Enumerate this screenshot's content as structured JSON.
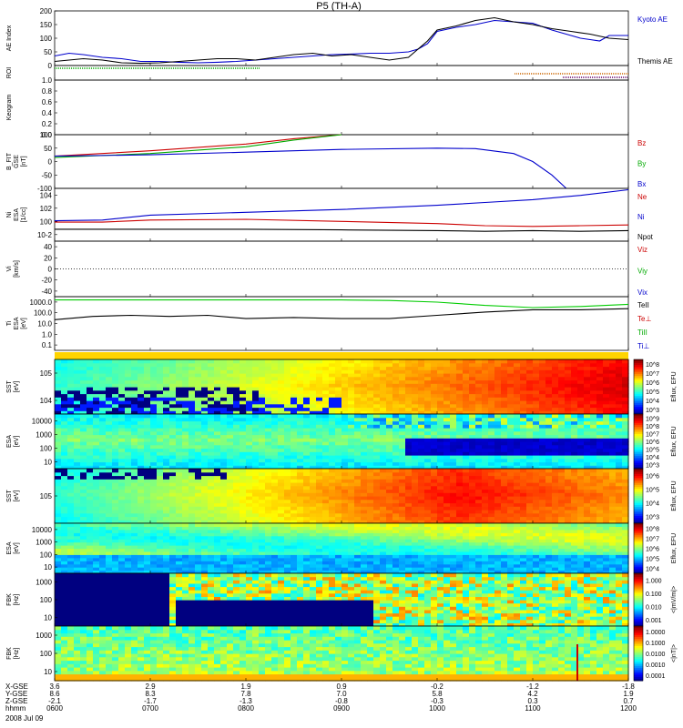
{
  "title": "P5 (TH-A)",
  "date_label": "2008 Jul 09",
  "chart_data": [
    {
      "type": "line",
      "panel": "ae",
      "ylabel": "AE Index",
      "yticks": [
        "0",
        "50",
        "100",
        "150",
        "200"
      ],
      "ylim": [
        0,
        200
      ],
      "series": [
        {
          "name": "Kyoto AE",
          "color": "#0000cc",
          "x": [
            6,
            6.15,
            6.3,
            6.5,
            6.7,
            6.9,
            7.1,
            7.3,
            7.5,
            7.7,
            7.9,
            8.1,
            8.3,
            8.5,
            8.7,
            8.9,
            9.1,
            9.3,
            9.5,
            9.7,
            9.8,
            9.9,
            10.0,
            10.2,
            10.4,
            10.6,
            10.8,
            11.0,
            11.2,
            11.4,
            11.5,
            11.6,
            11.7,
            11.8,
            11.9,
            12.0
          ],
          "y": [
            35,
            45,
            40,
            30,
            25,
            15,
            15,
            12,
            10,
            12,
            15,
            20,
            25,
            30,
            35,
            40,
            42,
            45,
            45,
            50,
            60,
            80,
            125,
            140,
            150,
            165,
            160,
            155,
            130,
            110,
            100,
            95,
            90,
            110,
            110,
            110
          ]
        },
        {
          "name": "Themis AE",
          "color": "#000000",
          "x": [
            6,
            6.15,
            6.3,
            6.5,
            6.7,
            6.9,
            7.1,
            7.3,
            7.5,
            7.7,
            7.9,
            8.1,
            8.3,
            8.5,
            8.7,
            8.9,
            9.1,
            9.3,
            9.5,
            9.7,
            9.8,
            9.9,
            10.0,
            10.2,
            10.4,
            10.6,
            10.8,
            11.0,
            11.2,
            11.4,
            11.6,
            11.8,
            12.0
          ],
          "y": [
            15,
            20,
            25,
            20,
            10,
            8,
            10,
            15,
            20,
            25,
            25,
            20,
            30,
            40,
            45,
            35,
            40,
            30,
            20,
            30,
            60,
            90,
            130,
            145,
            165,
            175,
            160,
            150,
            135,
            125,
            115,
            100,
            95
          ]
        }
      ],
      "legend": [
        "Kyoto AE",
        "Themis AE"
      ]
    },
    {
      "type": "line",
      "panel": "roi",
      "ylabel": "ROI"
    },
    {
      "type": "line",
      "panel": "keogram",
      "ylabel": "Keogram",
      "yticks": [
        "0.0",
        "0.2",
        "0.4",
        "0.6",
        "0.8",
        "1.0"
      ],
      "ylim": [
        0,
        1
      ]
    },
    {
      "type": "line",
      "panel": "bfit",
      "ylabel": "B_FIT",
      "unit_lines": [
        "GSE",
        "[nT]"
      ],
      "yticks": [
        "-100",
        "-50",
        "0",
        "50",
        "100"
      ],
      "ylim": [
        -100,
        100
      ],
      "series": [
        {
          "name": "Bz",
          "color": "#cc0000",
          "x": [
            6,
            7,
            8,
            8.5,
            9.0
          ],
          "y": [
            20,
            40,
            65,
            85,
            100
          ]
        },
        {
          "name": "By",
          "color": "#00aa00",
          "x": [
            6,
            7,
            8,
            8.5,
            9.0
          ],
          "y": [
            15,
            30,
            55,
            80,
            100
          ]
        },
        {
          "name": "Bx",
          "color": "#0000cc",
          "x": [
            6,
            7,
            8,
            9,
            10,
            10.4,
            10.8,
            11.0,
            11.2,
            11.35
          ],
          "y": [
            20,
            25,
            35,
            45,
            50,
            48,
            30,
            0,
            -50,
            -100
          ]
        }
      ],
      "legend": [
        "Bz",
        "By",
        "Bx"
      ]
    },
    {
      "type": "line",
      "panel": "ni",
      "ylabel": "Ni",
      "unit_lines": [
        "ESA",
        "[1/cc]"
      ],
      "yticks": [
        "10-2",
        "100",
        "102",
        "104"
      ],
      "ylim": [
        -2.5,
        5
      ],
      "log_scale": true,
      "series": [
        {
          "name": "Ne",
          "color": "#cc0000",
          "x": [
            6,
            6.5,
            7,
            8,
            9,
            10,
            10.5,
            11,
            11.5,
            12
          ],
          "y": [
            0.2,
            0.2,
            0.5,
            0.6,
            0.3,
            0.0,
            -0.3,
            -0.4,
            -0.3,
            -0.2
          ]
        },
        {
          "name": "Ni",
          "color": "#0000cc",
          "x": [
            6,
            6.5,
            7,
            8,
            9,
            10,
            10.5,
            11,
            11.5,
            12
          ],
          "y": [
            0.4,
            0.5,
            1.2,
            1.6,
            2.0,
            2.6,
            3.0,
            3.4,
            4.0,
            4.8
          ]
        },
        {
          "name": "Npot",
          "color": "#000000",
          "x": [
            6,
            7,
            8,
            9,
            10,
            10.5,
            11,
            11.5,
            12
          ],
          "y": [
            -0.8,
            -0.8,
            -0.8,
            -0.9,
            -1.0,
            -1.1,
            -1.0,
            -1.1,
            -1.0
          ]
        }
      ],
      "legend": [
        "Ne",
        "Ni",
        "Npot"
      ]
    },
    {
      "type": "line",
      "panel": "vi",
      "ylabel": "Vi",
      "unit_lines": [
        "[km/s]"
      ],
      "yticks": [
        "-40",
        "-20",
        "0",
        "20",
        "40"
      ],
      "ylim": [
        -50,
        50
      ],
      "legend": [
        "Viz",
        "Viy",
        "Vix"
      ]
    },
    {
      "type": "line",
      "panel": "ti",
      "ylabel": "Ti",
      "unit_lines": [
        "ESA",
        "[eV]"
      ],
      "yticks": [
        "0.1",
        "1.0",
        "10.0",
        "100.0",
        "1000.0"
      ],
      "ylim": [
        -1.3,
        3.6
      ],
      "log_scale": true,
      "series": [
        {
          "name": "TiII",
          "color": "#00cc00",
          "x": [
            6,
            7,
            8,
            9,
            9.5,
            10,
            10.5,
            11,
            11.5,
            12
          ],
          "y": [
            3.3,
            3.3,
            3.3,
            3.3,
            3.25,
            3.1,
            2.8,
            2.6,
            2.7,
            2.9
          ]
        },
        {
          "name": "TeII",
          "color": "#000000",
          "x": [
            6,
            6.4,
            6.8,
            7.2,
            7.6,
            8,
            8.5,
            9,
            9.5,
            10,
            10.5,
            11,
            11.5,
            12
          ],
          "y": [
            1.5,
            1.8,
            1.9,
            1.8,
            1.9,
            1.6,
            1.7,
            1.6,
            1.6,
            1.9,
            2.2,
            2.4,
            2.4,
            2.5
          ]
        }
      ],
      "legend": [
        "TeII",
        "Te⊥",
        "TiII",
        "Ti⊥"
      ]
    },
    {
      "type": "heatmap",
      "panel": "sst1",
      "ylabel": "SST",
      "unit_lines": [
        "[eV]"
      ],
      "yticks": [
        "104",
        "105"
      ],
      "colorbar": "Eflux, EFU",
      "cticks": [
        "10^3",
        "10^4",
        "10^5",
        "10^6",
        "10^7",
        "10^8"
      ]
    },
    {
      "type": "heatmap",
      "panel": "esa1",
      "ylabel": "ESA",
      "unit_lines": [
        "[eV]"
      ],
      "yticks": [
        "10",
        "100",
        "1000",
        "10000"
      ],
      "colorbar": "Eflux, EFU",
      "cticks": [
        "10^3",
        "10^4",
        "10^5",
        "10^6",
        "10^7",
        "10^8",
        "10^9"
      ]
    },
    {
      "type": "heatmap",
      "panel": "sst2",
      "ylabel": "SST",
      "unit_lines": [
        "[eV]"
      ],
      "yticks": [
        "105"
      ],
      "colorbar": "Eflux, EFU",
      "cticks": [
        "10^3",
        "10^4",
        "10^5",
        "10^6"
      ]
    },
    {
      "type": "heatmap",
      "panel": "esa2",
      "ylabel": "ESA",
      "unit_lines": [
        "[eV]"
      ],
      "yticks": [
        "10",
        "100",
        "1000",
        "10000"
      ],
      "colorbar": "Eflux, EFU",
      "cticks": [
        "10^4",
        "10^5",
        "10^6",
        "10^7",
        "10^8"
      ]
    },
    {
      "type": "heatmap",
      "panel": "fbk1",
      "ylabel": "FBK",
      "unit_lines": [
        "[Hz]"
      ],
      "yticks": [
        "10",
        "100",
        "1000"
      ],
      "colorbar": "<|mV/m|>",
      "cticks": [
        "0.001",
        "0.010",
        "0.100",
        "1.000"
      ]
    },
    {
      "type": "heatmap",
      "panel": "fbk2",
      "ylabel": "FBK",
      "unit_lines": [
        "[Hz]"
      ],
      "yticks": [
        "10",
        "100",
        "1000"
      ],
      "colorbar": "<|nT|>",
      "cticks": [
        "0.0001",
        "0.0010",
        "0.0100",
        "0.1000",
        "1.0000"
      ]
    }
  ],
  "time_axis": {
    "row_labels": [
      "X-GSE",
      "Y-GSE",
      "Z-GSE",
      "hhmm"
    ],
    "columns": [
      {
        "x": "3.6",
        "y": "8.6",
        "z": "-2.1",
        "t": "0600"
      },
      {
        "x": "2.9",
        "y": "8.3",
        "z": "-1.7",
        "t": "0700"
      },
      {
        "x": "1.9",
        "y": "7.8",
        "z": "-1.3",
        "t": "0800"
      },
      {
        "x": "0.9",
        "y": "7.0",
        "z": "-0.8",
        "t": "0900"
      },
      {
        "x": "-0.2",
        "y": "5.8",
        "z": "-0.3",
        "t": "1000"
      },
      {
        "x": "-1.2",
        "y": "4.2",
        "z": "0.3",
        "t": "1100"
      },
      {
        "x": "-1.8",
        "y": "1.9",
        "z": "0.7",
        "t": "1200"
      }
    ]
  }
}
